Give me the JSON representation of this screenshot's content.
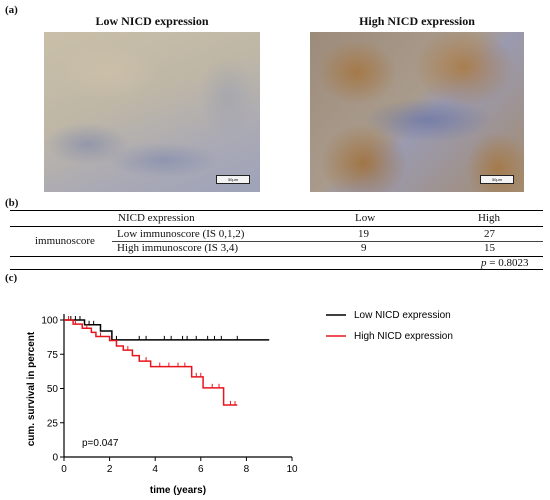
{
  "panel_a": {
    "label": "(a)",
    "images": [
      {
        "title": "Low NICD expression",
        "scalebar_text": "50µm"
      },
      {
        "title": "High NICD expression",
        "scalebar_text": "50µm"
      }
    ]
  },
  "panel_b": {
    "label": "(b)",
    "header": {
      "col_label": "NICD expression",
      "low": "Low",
      "high": "High"
    },
    "row_group": "immunoscore",
    "rows": [
      {
        "label": "Low immunoscore (IS 0,1,2)",
        "low": "19",
        "high": "27"
      },
      {
        "label": "High immunoscore (IS 3,4)",
        "low": "9",
        "high": "15"
      }
    ],
    "p_value_prefix": "p",
    "p_value_rest": " = 0.8023"
  },
  "panel_c": {
    "label": "(c)",
    "chart_data": {
      "type": "line",
      "subtype": "kaplan-meier",
      "title": "",
      "xlabel": "time (years)",
      "ylabel": "cum. survival in percent",
      "xlim": [
        0,
        10
      ],
      "ylim": [
        0,
        100
      ],
      "xticks": [
        0,
        2,
        4,
        6,
        8,
        10
      ],
      "yticks": [
        0,
        25,
        50,
        75,
        100
      ],
      "annotation": "p=0.047",
      "legend_position": "right",
      "series": [
        {
          "name": "Low NICD expression",
          "color": "#000000",
          "steps": [
            [
              0,
              100
            ],
            [
              0.9,
              96.5
            ],
            [
              1.6,
              92
            ],
            [
              2.1,
              85.5
            ],
            [
              9.0,
              85.5
            ]
          ],
          "censored": [
            [
              0.3,
              100
            ],
            [
              0.5,
              100
            ],
            [
              0.7,
              100
            ],
            [
              1.1,
              96.5
            ],
            [
              1.3,
              96.5
            ],
            [
              2.3,
              85.5
            ],
            [
              3.3,
              85.5
            ],
            [
              3.6,
              85.5
            ],
            [
              4.4,
              85.5
            ],
            [
              4.7,
              85.5
            ],
            [
              5.2,
              85.5
            ],
            [
              5.4,
              85.5
            ],
            [
              5.8,
              85.5
            ],
            [
              6.3,
              85.5
            ],
            [
              6.6,
              85.5
            ],
            [
              6.9,
              85.5
            ],
            [
              7.6,
              85.5
            ]
          ]
        },
        {
          "name": "High NICD expression",
          "color": "#e8141b",
          "steps": [
            [
              0,
              100
            ],
            [
              0.4,
              97
            ],
            [
              0.8,
              94
            ],
            [
              1.2,
              91
            ],
            [
              1.4,
              88
            ],
            [
              2.0,
              85
            ],
            [
              2.3,
              81
            ],
            [
              2.6,
              78
            ],
            [
              3.0,
              74
            ],
            [
              3.3,
              70
            ],
            [
              3.8,
              66
            ],
            [
              5.6,
              58.5
            ],
            [
              6.1,
              50.5
            ],
            [
              7.0,
              38
            ],
            [
              7.6,
              38
            ]
          ],
          "censored": [
            [
              0.2,
              100
            ],
            [
              0.5,
              97
            ],
            [
              1.0,
              94
            ],
            [
              1.6,
              88
            ],
            [
              2.8,
              78
            ],
            [
              3.6,
              70
            ],
            [
              4.2,
              66
            ],
            [
              4.6,
              66
            ],
            [
              5.0,
              66
            ],
            [
              5.3,
              66
            ],
            [
              5.8,
              58.5
            ],
            [
              6.0,
              58.5
            ],
            [
              6.5,
              50.5
            ],
            [
              6.8,
              50.5
            ],
            [
              7.3,
              38
            ],
            [
              7.5,
              38
            ]
          ]
        }
      ]
    }
  }
}
